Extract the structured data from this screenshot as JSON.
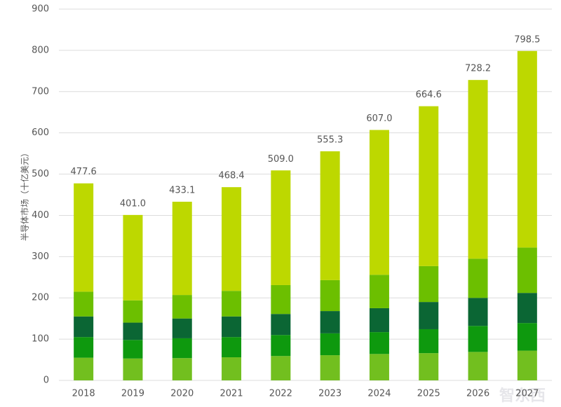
{
  "chart_data": {
    "type": "stacked_bar",
    "y_label": "半导体市场（十亿美元）",
    "categories": [
      "2018",
      "2019",
      "2020",
      "2021",
      "2022",
      "2023",
      "2024",
      "2025",
      "2026",
      "2027"
    ],
    "series": [
      {
        "color": "#72bf1f",
        "values": [
          55,
          53,
          54,
          56,
          59,
          61,
          64,
          66,
          69,
          72
        ]
      },
      {
        "color": "#0e990e",
        "values": [
          50,
          45,
          48,
          49,
          51,
          53,
          53,
          58,
          63,
          67
        ]
      },
      {
        "color": "#0b6634",
        "values": [
          50,
          42,
          48,
          50,
          51,
          54,
          58,
          66,
          68,
          73
        ]
      },
      {
        "color": "#6cbf00",
        "values": [
          60,
          54,
          57,
          62,
          70,
          75,
          81,
          87,
          95,
          110
        ]
      },
      {
        "color": "#bdd800",
        "values": [
          262.6,
          207,
          226.1,
          251.4,
          278,
          312.3,
          351,
          387.6,
          433.2,
          476.5
        ]
      }
    ],
    "totals": [
      477.6,
      401,
      433.1,
      468.4,
      509,
      555.3,
      607,
      664.6,
      728.2,
      798.5
    ],
    "total_labels": [
      "477.6",
      "401.0",
      "433.1",
      "468.4",
      "509.0",
      "555.3",
      "607.0",
      "664.6",
      "728.2",
      "798.5"
    ],
    "ylim": [
      0,
      900
    ],
    "yticks": [
      0,
      100,
      200,
      300,
      400,
      500,
      600,
      700,
      800,
      900
    ],
    "grid": true,
    "watermark": "智东西"
  }
}
